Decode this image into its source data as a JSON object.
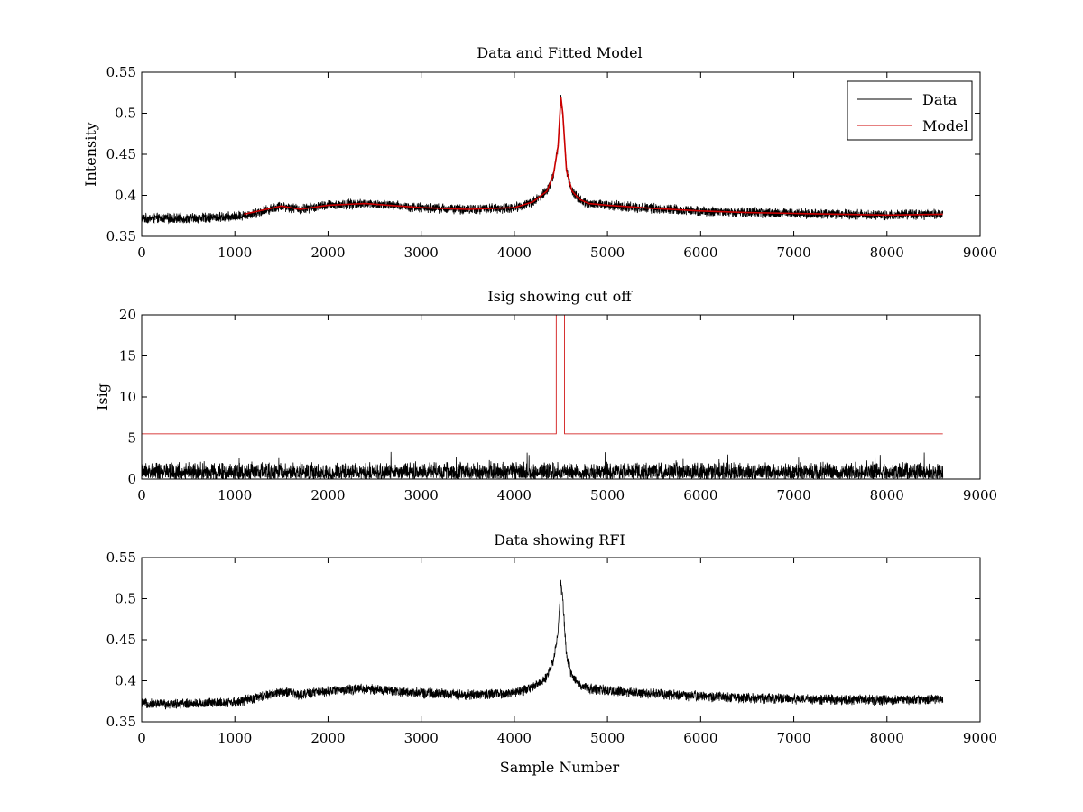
{
  "chart_data": [
    {
      "type": "line",
      "title": "Data and Fitted Model",
      "xlabel": "",
      "ylabel": "Intensity",
      "xlim": [
        0,
        9000
      ],
      "ylim": [
        0.35,
        0.55
      ],
      "xticks": [
        0,
        1000,
        2000,
        3000,
        4000,
        5000,
        6000,
        7000,
        8000,
        9000
      ],
      "yticks": [
        0.35,
        0.4,
        0.45,
        0.5,
        0.55
      ],
      "grid": false,
      "legend": {
        "placement": "top-right",
        "entries": [
          "Data",
          "Model"
        ]
      },
      "series": [
        {
          "name": "Data",
          "color": "#000000",
          "style": "noisy",
          "noise_amplitude": 0.007,
          "x": [
            0,
            500,
            1000,
            1200,
            1500,
            1700,
            2000,
            2400,
            3000,
            3500,
            4000,
            4200,
            4350,
            4420,
            4470,
            4500,
            4520,
            4560,
            4620,
            4700,
            4800,
            5000,
            5500,
            6000,
            6500,
            7000,
            7500,
            8000,
            8600
          ],
          "y": [
            0.372,
            0.372,
            0.374,
            0.378,
            0.387,
            0.383,
            0.388,
            0.39,
            0.385,
            0.383,
            0.385,
            0.392,
            0.405,
            0.425,
            0.46,
            0.52,
            0.5,
            0.43,
            0.405,
            0.395,
            0.39,
            0.388,
            0.384,
            0.381,
            0.379,
            0.378,
            0.377,
            0.376,
            0.377
          ]
        },
        {
          "name": "Model",
          "color": "#cc0000",
          "style": "smooth",
          "x": [
            1100,
            1500,
            1700,
            2000,
            2400,
            3000,
            3500,
            4000,
            4200,
            4350,
            4420,
            4470,
            4500,
            4520,
            4560,
            4620,
            4700,
            4800,
            5000,
            5500,
            6000,
            6500,
            7000,
            7500,
            8000,
            8600
          ],
          "y": [
            0.377,
            0.387,
            0.383,
            0.388,
            0.39,
            0.385,
            0.383,
            0.385,
            0.392,
            0.405,
            0.425,
            0.46,
            0.52,
            0.5,
            0.43,
            0.405,
            0.395,
            0.39,
            0.388,
            0.384,
            0.381,
            0.379,
            0.378,
            0.377,
            0.376,
            0.377
          ]
        }
      ]
    },
    {
      "type": "line",
      "title": "Isig showing cut off",
      "xlabel": "",
      "ylabel": "Isig",
      "xlim": [
        0,
        9000
      ],
      "ylim": [
        0,
        20
      ],
      "xticks": [
        0,
        1000,
        2000,
        3000,
        4000,
        5000,
        6000,
        7000,
        8000,
        9000
      ],
      "yticks": [
        0,
        5,
        10,
        15,
        20
      ],
      "grid": false,
      "series": [
        {
          "color": "#000000",
          "style": "spiky",
          "base": 0.9,
          "noise_amplitude": 1.6,
          "x": [
            0,
            8600
          ],
          "y": [
            0.9,
            0.9
          ]
        },
        {
          "color": "#cc0000",
          "style": "step",
          "x": [
            0,
            4450,
            4450,
            4540,
            4540,
            8600
          ],
          "y": [
            5.5,
            5.5,
            20,
            20,
            5.5,
            5.5
          ]
        }
      ]
    },
    {
      "type": "line",
      "title": "Data showing RFI",
      "xlabel": "Sample Number",
      "ylabel": "",
      "xlim": [
        0,
        9000
      ],
      "ylim": [
        0.35,
        0.55
      ],
      "xticks": [
        0,
        1000,
        2000,
        3000,
        4000,
        5000,
        6000,
        7000,
        8000,
        9000
      ],
      "yticks": [
        0.35,
        0.4,
        0.45,
        0.5,
        0.55
      ],
      "grid": false,
      "series": [
        {
          "color": "#000000",
          "style": "noisy",
          "noise_amplitude": 0.007,
          "x": [
            0,
            500,
            1000,
            1200,
            1500,
            1700,
            2000,
            2400,
            3000,
            3500,
            4000,
            4200,
            4350,
            4420,
            4470,
            4500,
            4520,
            4560,
            4620,
            4700,
            4800,
            5000,
            5500,
            6000,
            6500,
            7000,
            7500,
            8000,
            8600
          ],
          "y": [
            0.372,
            0.372,
            0.374,
            0.378,
            0.387,
            0.383,
            0.388,
            0.39,
            0.385,
            0.383,
            0.385,
            0.392,
            0.405,
            0.425,
            0.46,
            0.52,
            0.5,
            0.43,
            0.405,
            0.395,
            0.39,
            0.388,
            0.384,
            0.381,
            0.379,
            0.378,
            0.377,
            0.376,
            0.377
          ]
        }
      ]
    }
  ]
}
